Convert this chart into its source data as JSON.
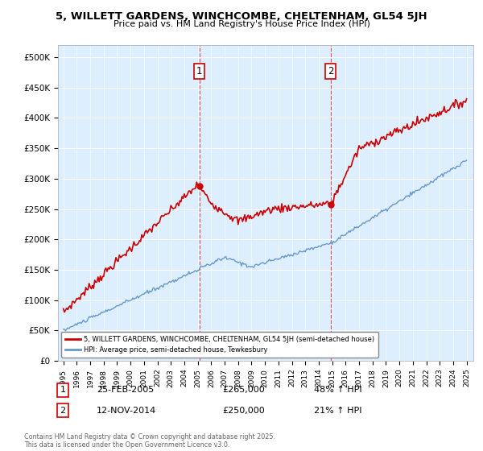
{
  "title": "5, WILLETT GARDENS, WINCHCOMBE, CHELTENHAM, GL54 5JH",
  "subtitle": "Price paid vs. HM Land Registry's House Price Index (HPI)",
  "ylabel_ticks": [
    "£0",
    "£50K",
    "£100K",
    "£150K",
    "£200K",
    "£250K",
    "£300K",
    "£350K",
    "£400K",
    "£450K",
    "£500K"
  ],
  "ytick_values": [
    0,
    50000,
    100000,
    150000,
    200000,
    250000,
    300000,
    350000,
    400000,
    450000,
    500000
  ],
  "ylim": [
    0,
    520000
  ],
  "purchase1_date": "25-FEB-2005",
  "purchase1_price": 265000,
  "purchase1_hpi": "48% ↑ HPI",
  "purchase2_date": "12-NOV-2014",
  "purchase2_price": 250000,
  "purchase2_hpi": "21% ↑ HPI",
  "legend_red": "5, WILLETT GARDENS, WINCHCOMBE, CHELTENHAM, GL54 5JH (semi-detached house)",
  "legend_blue": "HPI: Average price, semi-detached house, Tewkesbury",
  "footnote": "Contains HM Land Registry data © Crown copyright and database right 2025.\nThis data is licensed under the Open Government Licence v3.0.",
  "red_color": "#cc0000",
  "blue_color": "#6699cc",
  "vline_color": "#cc0000",
  "background_color": "#ddeeff",
  "plot_bg": "#ffffff"
}
